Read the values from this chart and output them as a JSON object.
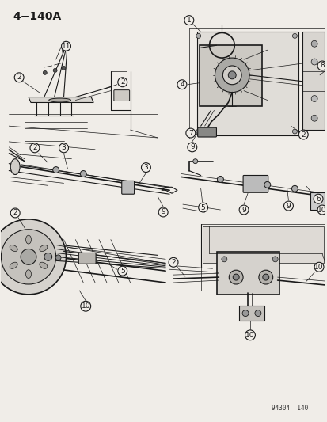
{
  "title": "4−140A",
  "diagram_id": "94304  140",
  "bg_color": "#f0ede8",
  "line_color": "#1a1a1a",
  "label_color": "#111111",
  "fig_width": 4.14,
  "fig_height": 5.33,
  "dpi": 100
}
